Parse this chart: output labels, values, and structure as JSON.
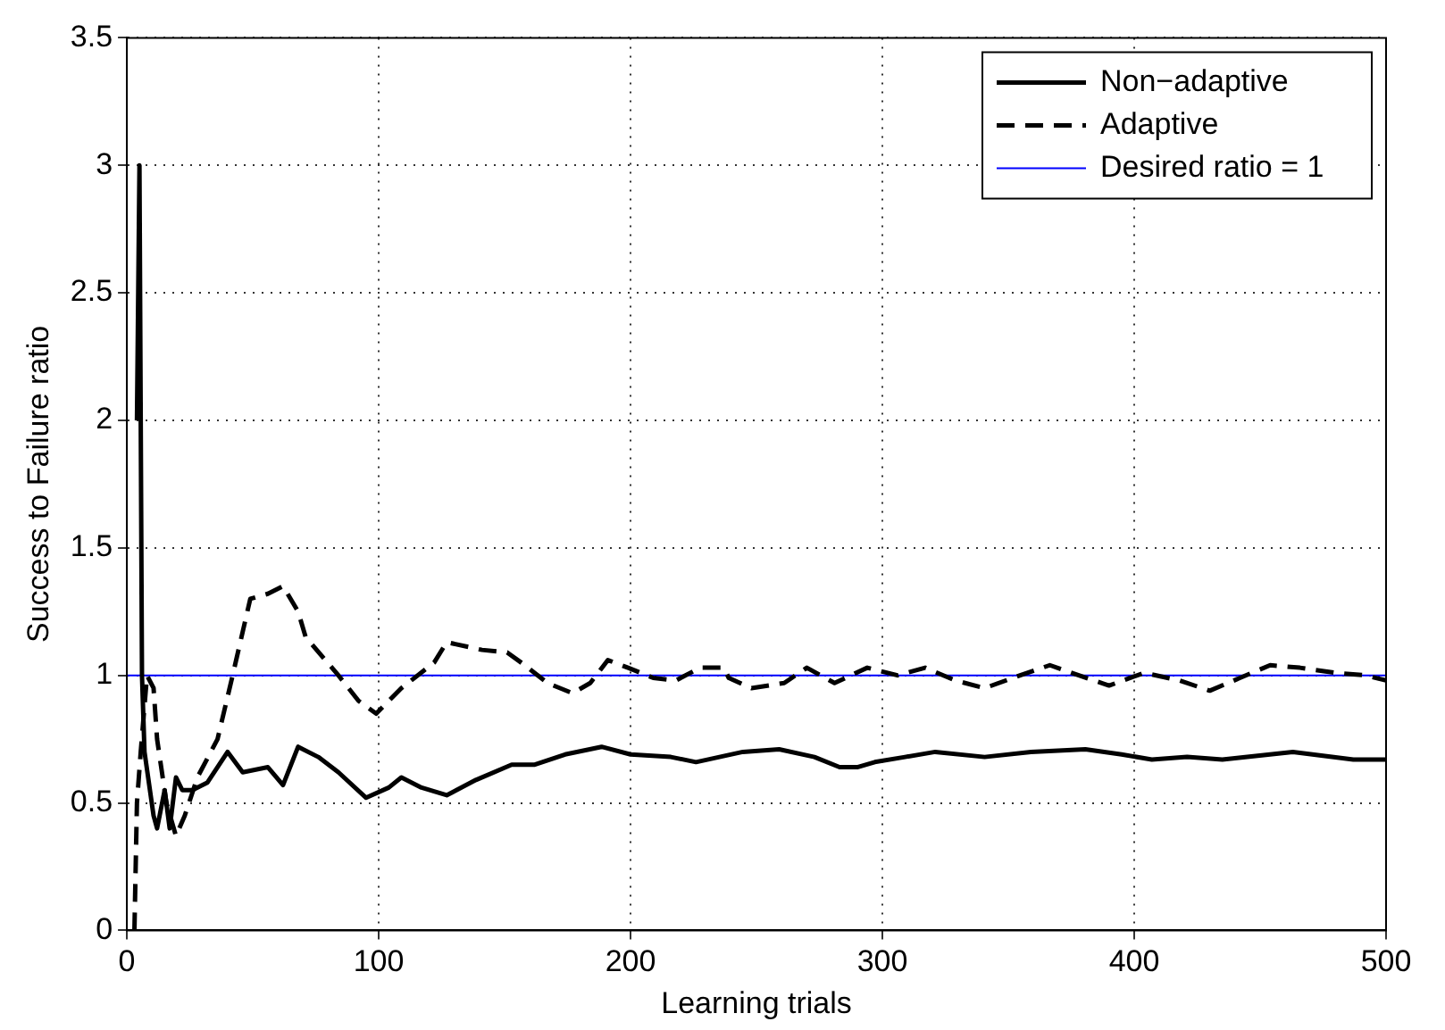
{
  "chart_data": {
    "type": "line",
    "xlabel": "Learning trials",
    "ylabel": "Success to Failure ratio",
    "xlim": [
      0,
      500
    ],
    "xticks": [
      0,
      100,
      200,
      300,
      400,
      500
    ],
    "ylim": [
      0,
      3.5
    ],
    "yticks": [
      0,
      0.5,
      1,
      1.5,
      2,
      2.5,
      3,
      3.5
    ],
    "grid": true,
    "legend": "top right",
    "marker": "none",
    "series": [
      {
        "name": "Non−adaptive",
        "color": "#000000",
        "line_style": "solid",
        "x": [
          4,
          5,
          6,
          7,
          10.6,
          12,
          15,
          17,
          19.5,
          22,
          26,
          32,
          40,
          46,
          56,
          62,
          68,
          76,
          84,
          95,
          104,
          109,
          117,
          127,
          138.6,
          152.8,
          162,
          174,
          188.5,
          200,
          216,
          226,
          244.6,
          259,
          273,
          283,
          290,
          297,
          309,
          321,
          340.6,
          359,
          380.6,
          395,
          407,
          421,
          435,
          463,
          487,
          500
        ],
        "values": [
          2,
          3,
          1,
          0.7,
          0.45,
          0.4,
          0.55,
          0.4,
          0.6,
          0.55,
          0.55,
          0.58,
          0.7,
          0.62,
          0.64,
          0.57,
          0.72,
          0.68,
          0.62,
          0.52,
          0.56,
          0.6,
          0.56,
          0.53,
          0.59,
          0.65,
          0.65,
          0.69,
          0.72,
          0.69,
          0.68,
          0.66,
          0.7,
          0.71,
          0.68,
          0.64,
          0.64,
          0.66,
          0.68,
          0.7,
          0.68,
          0.7,
          0.71,
          0.69,
          0.67,
          0.68,
          0.67,
          0.7,
          0.67,
          0.67
        ]
      },
      {
        "name": "Adaptive",
        "color": "#000000",
        "line_style": "dashed",
        "x": [
          3,
          4,
          5.5,
          8,
          10.6,
          12,
          15.7,
          19.5,
          23,
          28,
          36,
          42,
          49,
          56,
          62,
          68,
          71,
          84,
          92,
          99,
          109,
          122,
          127,
          141,
          151,
          158,
          167,
          177,
          184,
          191,
          199,
          209,
          218,
          227.6,
          237,
          239,
          248,
          261,
          270,
          281,
          294,
          306,
          317,
          329,
          340.6,
          354.7,
          366.5,
          378,
          390,
          404,
          418,
          430,
          442,
          454,
          465.8,
          480,
          492,
          500
        ],
        "values": [
          0,
          0.5,
          0.7,
          1,
          0.95,
          0.75,
          0.5,
          0.37,
          0.45,
          0.6,
          0.75,
          1,
          1.3,
          1.32,
          1.35,
          1.25,
          1.15,
          1,
          0.9,
          0.85,
          0.95,
          1.05,
          1.13,
          1.1,
          1.09,
          1.04,
          0.97,
          0.93,
          0.97,
          1.06,
          1.03,
          0.99,
          0.98,
          1.03,
          1.03,
          0.99,
          0.95,
          0.97,
          1.03,
          0.97,
          1.03,
          1,
          1.03,
          0.98,
          0.95,
          1,
          1.04,
          1,
          0.96,
          1.01,
          0.98,
          0.94,
          0.99,
          1.04,
          1.03,
          1.01,
          1,
          0.98
        ]
      },
      {
        "name": "Desired ratio = 1",
        "color": "#0000ff",
        "line_style": "solid",
        "x": [
          0,
          500
        ],
        "values": [
          1,
          1
        ]
      }
    ]
  }
}
